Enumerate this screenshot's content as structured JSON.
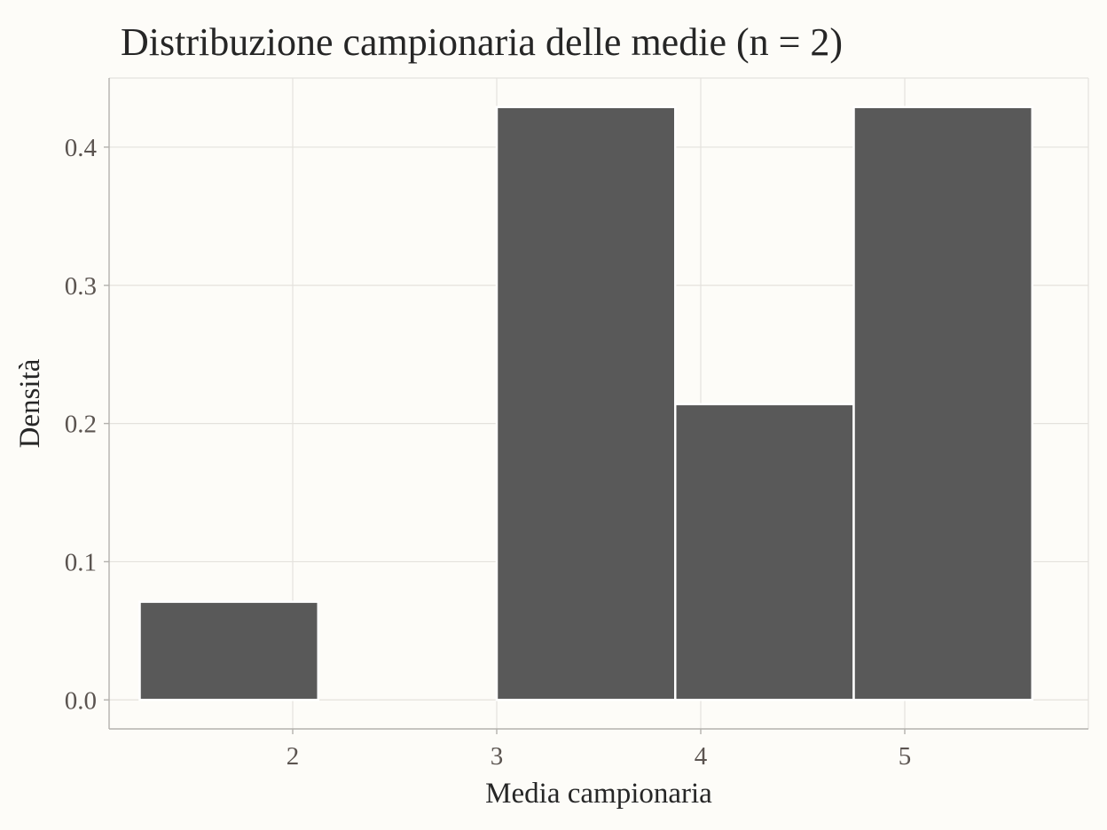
{
  "chart_data": {
    "type": "bar",
    "title": "Distribuzione campionaria delle medie (n = 2)",
    "xlabel": "Media campionaria",
    "ylabel": "Densità",
    "xlim": [
      1.1,
      5.9
    ],
    "ylim": [
      -0.021,
      0.45
    ],
    "x_ticks": [
      2,
      3,
      4,
      5
    ],
    "y_ticks": [
      0.0,
      0.1,
      0.2,
      0.3,
      0.4
    ],
    "x_tick_labels": [
      "2",
      "3",
      "4",
      "5"
    ],
    "y_tick_labels": [
      "0.0",
      "0.1",
      "0.2",
      "0.3",
      "0.4"
    ],
    "bins": [
      {
        "x0": 1.25,
        "x1": 2.125,
        "value": 0.071
      },
      {
        "x0": 2.125,
        "x1": 3.0,
        "value": 0.0
      },
      {
        "x0": 3.0,
        "x1": 3.875,
        "value": 0.429
      },
      {
        "x0": 3.875,
        "x1": 4.75,
        "value": 0.214
      },
      {
        "x0": 4.75,
        "x1": 5.625,
        "value": 0.429
      }
    ],
    "bar_color": "#595959",
    "bar_outline": "#ffffff",
    "grid": true,
    "legend": "none"
  }
}
